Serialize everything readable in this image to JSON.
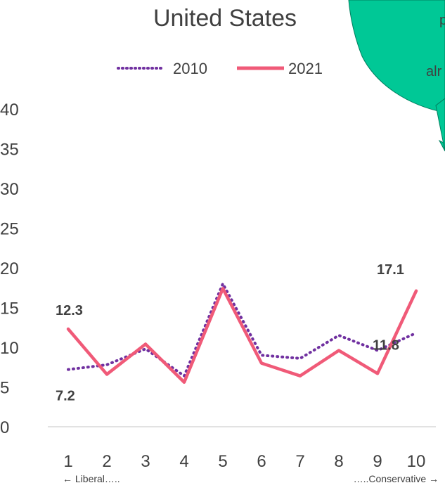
{
  "chart_data": {
    "type": "line",
    "title": "United States",
    "categories": [
      "1",
      "2",
      "3",
      "4",
      "5",
      "6",
      "7",
      "8",
      "9",
      "10"
    ],
    "series": [
      {
        "name": "2010",
        "values": [
          7.2,
          7.8,
          9.8,
          6.4,
          18.0,
          9.0,
          8.6,
          11.5,
          9.6,
          11.8
        ],
        "color": "#7030A0",
        "style": "dotted"
      },
      {
        "name": "2021",
        "values": [
          12.3,
          6.6,
          10.4,
          5.6,
          17.4,
          8.0,
          6.4,
          9.6,
          6.7,
          17.1
        ],
        "color": "#F05A78",
        "style": "solid"
      }
    ],
    "ylim": [
      0,
      40
    ],
    "yticks": [
      0,
      5,
      10,
      15,
      20,
      25,
      30,
      35,
      40
    ],
    "data_labels": [
      {
        "series": 1,
        "index": 0,
        "text": "12.3"
      },
      {
        "series": 0,
        "index": 0,
        "text": "7.2"
      },
      {
        "series": 1,
        "index": 9,
        "text": "17.1"
      },
      {
        "series": 0,
        "index": 9,
        "text": "11.8"
      }
    ],
    "axis_end_labels": {
      "left": "← Liberal…..",
      "right": "…..Conservative →"
    },
    "legend_position": "top",
    "grid": false
  },
  "callout": {
    "lines": [
      "p",
      "alr"
    ],
    "color": "#00C896"
  }
}
